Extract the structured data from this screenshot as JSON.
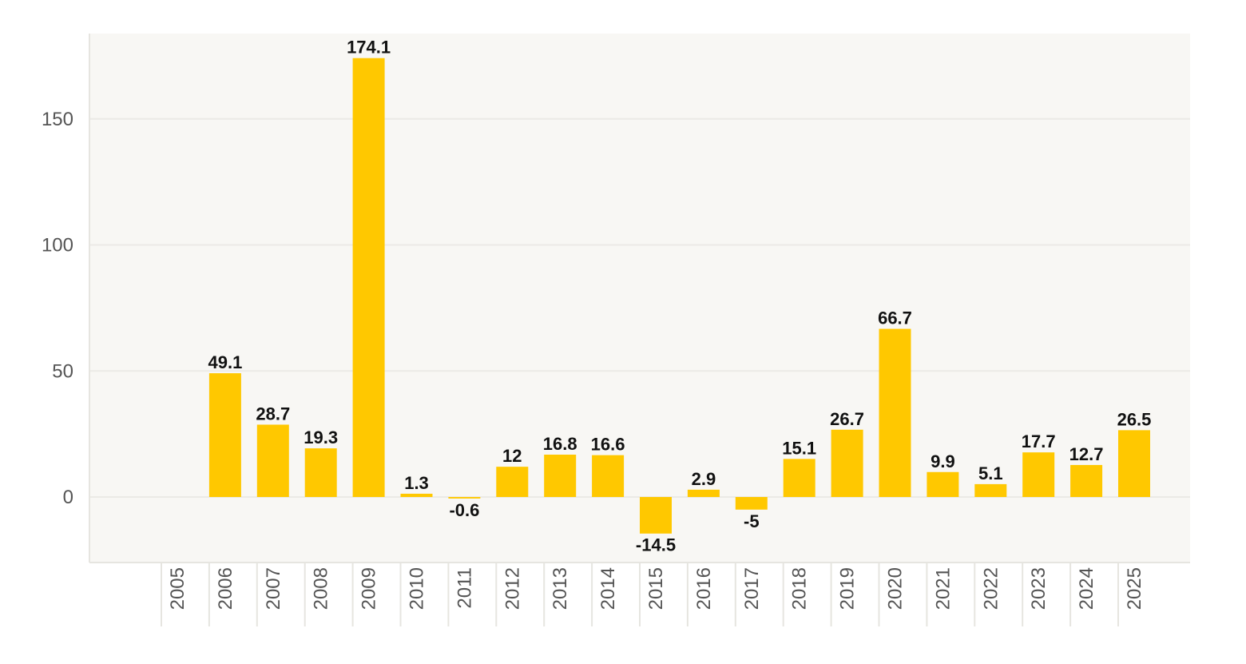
{
  "chart_data": {
    "type": "bar",
    "title": "",
    "xlabel": "",
    "ylabel": "",
    "ylim": [
      -25,
      183
    ],
    "yticks": [
      0,
      50,
      100,
      150
    ],
    "ytick_labels": [
      "0",
      "50",
      "100",
      "150"
    ],
    "grid": true,
    "categories": [
      "2005",
      "2006",
      "2007",
      "2008",
      "2009",
      "2010",
      "2011",
      "2012",
      "2013",
      "2014",
      "2015",
      "2016",
      "2017",
      "2018",
      "2019",
      "2020",
      "2021",
      "2022",
      "2023",
      "2024",
      "2025"
    ],
    "values": [
      null,
      49.1,
      28.7,
      19.3,
      174.1,
      1.3,
      -0.6,
      12,
      16.8,
      16.6,
      -14.5,
      2.9,
      -5,
      15.1,
      26.7,
      66.7,
      9.9,
      5.1,
      17.7,
      12.7,
      26.5
    ],
    "value_labels": [
      "",
      "49.1",
      "28.7",
      "19.3",
      "174.1",
      "1.3",
      "-0.6",
      "12",
      "16.8",
      "16.6",
      "-14.5",
      "2.9",
      "-5",
      "15.1",
      "26.7",
      "66.7",
      "9.9",
      "5.1",
      "17.7",
      "12.7",
      "26.5"
    ],
    "colors": {
      "bar": "#FFC800",
      "plot_background": "#F8F7F4",
      "gridline": "#EBEAE6",
      "axis_line": "#E6E5E0",
      "tick_text": "#555555",
      "label_text": "#111111"
    }
  }
}
